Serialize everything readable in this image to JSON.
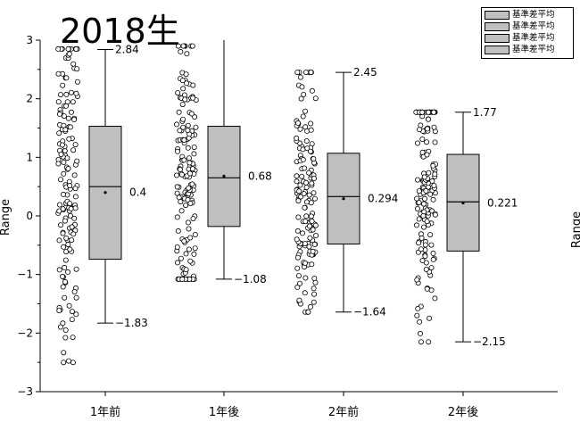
{
  "title": "2018生",
  "axis_label_left": "Range",
  "axis_label_right": "Range",
  "legend": [
    "基準差平均",
    "基準差平均",
    "基準差平均",
    "基準差平均"
  ],
  "chart_data": {
    "type": "box",
    "ylim": [
      -3,
      3
    ],
    "yticks": [
      -3,
      -2,
      -1,
      0,
      1,
      2,
      3
    ],
    "ytick_labels": [
      "-3",
      "-2",
      "-1",
      "0",
      "1",
      "2",
      "3"
    ],
    "categories": [
      "1年前",
      "1年後",
      "2年前",
      "2年後"
    ],
    "box_fill": "#bfbfbf",
    "groups": [
      {
        "label": "1年前",
        "q1": -0.74,
        "median": 0.5,
        "q3": 1.53,
        "mean": 0.4,
        "whisker_low": -1.83,
        "whisker_high": 2.84,
        "labels": {
          "high": "2.84",
          "mean": "0.4",
          "low": "-1.83"
        },
        "points_range": [
          -2.5,
          2.85
        ],
        "points_n": 150
      },
      {
        "label": "1年後",
        "q1": -0.18,
        "median": 0.65,
        "q3": 1.53,
        "mean": 0.68,
        "whisker_low": -1.08,
        "whisker_high": 3.0,
        "labels": {
          "high": "",
          "mean": "0.68",
          "low": "-1.08"
        },
        "points_range": [
          -1.08,
          2.9
        ],
        "points_n": 150
      },
      {
        "label": "2年前",
        "q1": -0.48,
        "median": 0.33,
        "q3": 1.07,
        "mean": 0.294,
        "whisker_low": -1.64,
        "whisker_high": 2.45,
        "labels": {
          "high": "2.45",
          "mean": "0.294",
          "low": "-1.64"
        },
        "points_range": [
          -1.64,
          2.45
        ],
        "points_n": 150
      },
      {
        "label": "2年後",
        "q1": -0.6,
        "median": 0.24,
        "q3": 1.05,
        "mean": 0.221,
        "whisker_low": -2.15,
        "whisker_high": 1.77,
        "labels": {
          "high": "1.77",
          "mean": "0.221",
          "low": "-2.15"
        },
        "points_range": [
          -2.15,
          1.77
        ],
        "points_n": 150
      }
    ]
  }
}
